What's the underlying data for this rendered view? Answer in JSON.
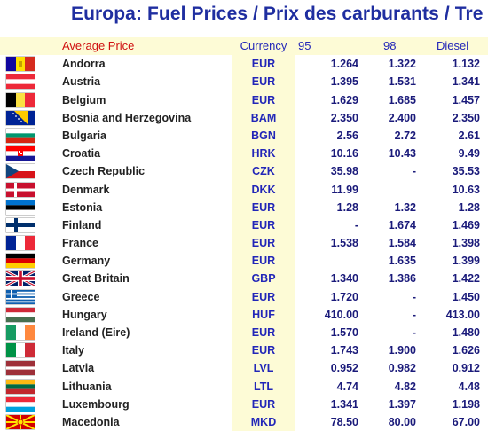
{
  "title": "Europa: Fuel Prices / Prix des carburants / Tre",
  "headers": {
    "avg": "Average Price",
    "currency": "Currency",
    "p95": "95",
    "p98": "98",
    "diesel": "Diesel"
  },
  "rows": [
    {
      "country": "Andorra",
      "currency": "EUR",
      "p95": "1.264",
      "p98": "1.322",
      "diesel": "1.132",
      "flag": "andorra-flag-icon"
    },
    {
      "country": "Austria",
      "currency": "EUR",
      "p95": "1.395",
      "p98": "1.531",
      "diesel": "1.341",
      "flag": "austria-flag-icon"
    },
    {
      "country": "Belgium",
      "currency": "EUR",
      "p95": "1.629",
      "p98": "1.685",
      "diesel": "1.457",
      "flag": "belgium-flag-icon"
    },
    {
      "country": "Bosnia and Herzegovina",
      "currency": "BAM",
      "p95": "2.350",
      "p98": "2.400",
      "diesel": "2.350",
      "flag": "bosnia-flag-icon"
    },
    {
      "country": "Bulgaria",
      "currency": "BGN",
      "p95": "2.56",
      "p98": "2.72",
      "diesel": "2.61",
      "flag": "bulgaria-flag-icon"
    },
    {
      "country": "Croatia",
      "currency": "HRK",
      "p95": "10.16",
      "p98": "10.43",
      "diesel": "9.49",
      "flag": "croatia-flag-icon"
    },
    {
      "country": "Czech Republic",
      "currency": "CZK",
      "p95": "35.98",
      "p98": "-",
      "diesel": "35.53",
      "flag": "czech-flag-icon"
    },
    {
      "country": "Denmark",
      "currency": "DKK",
      "p95": "11.99",
      "p98": "",
      "diesel": "10.63",
      "flag": "denmark-flag-icon"
    },
    {
      "country": "Estonia",
      "currency": "EUR",
      "p95": "1.28",
      "p98": "1.32",
      "diesel": "1.28",
      "flag": "estonia-flag-icon"
    },
    {
      "country": "Finland",
      "currency": "EUR",
      "p95": "-",
      "p98": "1.674",
      "diesel": "1.469",
      "flag": "finland-flag-icon"
    },
    {
      "country": "France",
      "currency": "EUR",
      "p95": "1.538",
      "p98": "1.584",
      "diesel": "1.398",
      "flag": "france-flag-icon"
    },
    {
      "country": "Germany",
      "currency": "EUR",
      "p95": "",
      "p98": "1.635",
      "diesel": "1.399",
      "flag": "germany-flag-icon"
    },
    {
      "country": "Great Britain",
      "currency": "GBP",
      "p95": "1.340",
      "p98": "1.386",
      "diesel": "1.422",
      "flag": "uk-flag-icon"
    },
    {
      "country": "Greece",
      "currency": "EUR",
      "p95": "1.720",
      "p98": "-",
      "diesel": "1.450",
      "flag": "greece-flag-icon"
    },
    {
      "country": "Hungary",
      "currency": "HUF",
      "p95": "410.00",
      "p98": "-",
      "diesel": "413.00",
      "flag": "hungary-flag-icon"
    },
    {
      "country": "Ireland (Eire)",
      "currency": "EUR",
      "p95": "1.570",
      "p98": "-",
      "diesel": "1.480",
      "flag": "ireland-flag-icon"
    },
    {
      "country": "Italy",
      "currency": "EUR",
      "p95": "1.743",
      "p98": "1.900",
      "diesel": "1.626",
      "flag": "italy-flag-icon"
    },
    {
      "country": "Latvia",
      "currency": "LVL",
      "p95": "0.952",
      "p98": "0.982",
      "diesel": "0.912",
      "flag": "latvia-flag-icon"
    },
    {
      "country": "Lithuania",
      "currency": "LTL",
      "p95": "4.74",
      "p98": "4.82",
      "diesel": "4.48",
      "flag": "lithuania-flag-icon"
    },
    {
      "country": "Luxembourg",
      "currency": "EUR",
      "p95": "1.341",
      "p98": "1.397",
      "diesel": "1.198",
      "flag": "luxembourg-flag-icon"
    },
    {
      "country": "Macedonia",
      "currency": "MKD",
      "p95": "78.50",
      "p98": "80.00",
      "diesel": "67.00",
      "flag": "macedonia-flag-icon"
    }
  ]
}
